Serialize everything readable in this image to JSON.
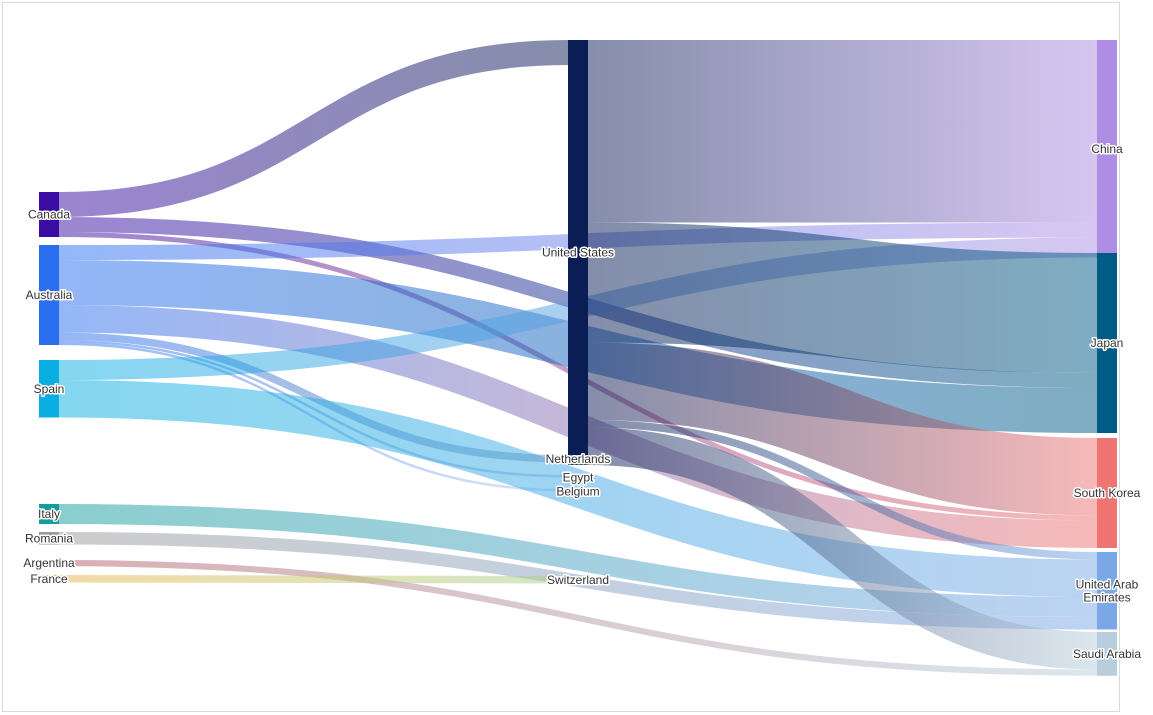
{
  "chart_data": {
    "type": "sankey",
    "title": "",
    "nodes": [
      {
        "id": "canada",
        "name": "Canada",
        "column": 0,
        "color": "#3a0ca3"
      },
      {
        "id": "australia",
        "name": "Australia",
        "column": 0,
        "color": "#2a6ff0"
      },
      {
        "id": "spain",
        "name": "Spain",
        "column": 0,
        "color": "#0aaee3"
      },
      {
        "id": "italy",
        "name": "Italy",
        "column": 0,
        "color": "#169c9c"
      },
      {
        "id": "romania",
        "name": "Romania",
        "column": 0,
        "color": "#9a9a9a"
      },
      {
        "id": "argentina",
        "name": "Argentina",
        "column": 0,
        "color": "#b0606a"
      },
      {
        "id": "france",
        "name": "France",
        "column": 0,
        "color": "#e6b84a"
      },
      {
        "id": "united_states",
        "name": "United States",
        "column": 1,
        "color": "#0b1d55"
      },
      {
        "id": "netherlands",
        "name": "Netherlands",
        "column": 1,
        "color": "#7a8fa8"
      },
      {
        "id": "egypt",
        "name": "Egypt",
        "column": 1,
        "color": "#9ab0d6"
      },
      {
        "id": "belgium",
        "name": "Belgium",
        "column": 1,
        "color": "#b7c9ef"
      },
      {
        "id": "switzerland",
        "name": "Switzerland",
        "column": 1,
        "color": "#a8d08d"
      },
      {
        "id": "china",
        "name": "China",
        "column": 2,
        "color": "#ad8ee4"
      },
      {
        "id": "japan",
        "name": "Japan",
        "column": 2,
        "color": "#005b86"
      },
      {
        "id": "south_korea",
        "name": "South Korea",
        "column": 2,
        "color": "#f07472"
      },
      {
        "id": "uae",
        "name": "United Arab Emirates",
        "column": 2,
        "color": "#7aa7e6"
      },
      {
        "id": "saudi_arabia",
        "name": "Saudi Arabia",
        "column": 2,
        "color": "#b8cedc"
      }
    ],
    "links": [
      {
        "source": "canada",
        "target": "united_states",
        "value": 20
      },
      {
        "source": "canada",
        "target": "japan",
        "value": 12
      },
      {
        "source": "canada",
        "target": "south_korea",
        "value": 4
      },
      {
        "source": "australia",
        "target": "china",
        "value": 12
      },
      {
        "source": "australia",
        "target": "japan",
        "value": 36
      },
      {
        "source": "australia",
        "target": "south_korea",
        "value": 22
      },
      {
        "source": "australia",
        "target": "belgium",
        "value": 2
      },
      {
        "source": "australia",
        "target": "egypt",
        "value": 2
      },
      {
        "source": "australia",
        "target": "netherlands",
        "value": 6
      },
      {
        "source": "spain",
        "target": "china",
        "value": 16
      },
      {
        "source": "spain",
        "target": "uae",
        "value": 30
      },
      {
        "source": "italy",
        "target": "uae",
        "value": 16
      },
      {
        "source": "romania",
        "target": "uae",
        "value": 10
      },
      {
        "source": "argentina",
        "target": "saudi_arabia",
        "value": 5
      },
      {
        "source": "france",
        "target": "switzerland",
        "value": 6
      },
      {
        "source": "united_states",
        "target": "china",
        "value": 146
      },
      {
        "source": "united_states",
        "target": "japan",
        "value": 96
      },
      {
        "source": "united_states",
        "target": "south_korea",
        "value": 62
      },
      {
        "source": "united_states",
        "target": "uae",
        "value": 6
      },
      {
        "source": "united_states",
        "target": "saudi_arabia",
        "value": 30
      }
    ]
  }
}
